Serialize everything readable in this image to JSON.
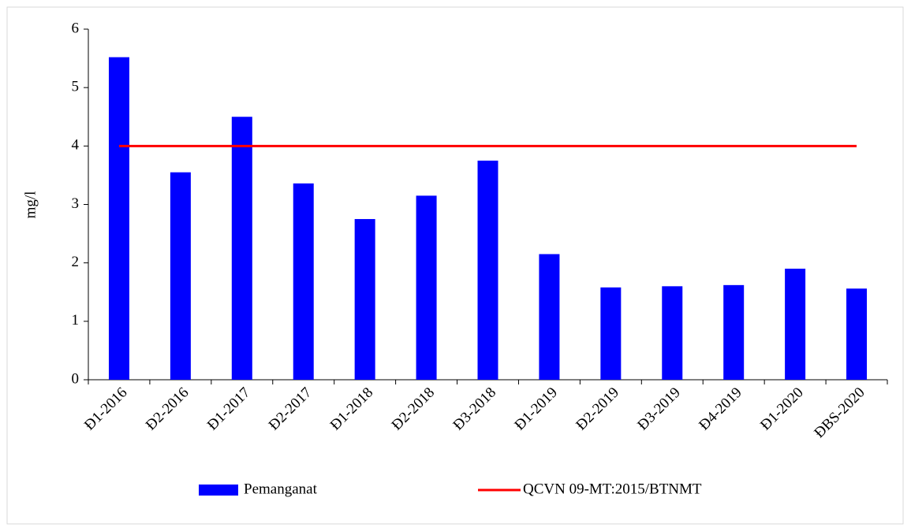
{
  "chart_data": {
    "type": "bar",
    "ylabel": "mg/l",
    "categories": [
      "Đ1-2016",
      "Đ2-2016",
      "Đ1-2017",
      "Đ2-2017",
      "Đ1-2018",
      "Đ2-2018",
      "Đ3-2018",
      "Đ1-2019",
      "Đ2-2019",
      "Đ3-2019",
      "Đ4-2019",
      "Đ1-2020",
      "ĐBS-2020"
    ],
    "series": [
      {
        "name": "Pemanganat",
        "type": "bar",
        "color": "#0000ff",
        "values": [
          5.52,
          3.55,
          4.5,
          3.36,
          2.75,
          3.15,
          3.75,
          2.15,
          1.58,
          1.6,
          1.62,
          1.9,
          1.56
        ]
      },
      {
        "name": "QCVN 09-MT:2015/BTNMT",
        "type": "line",
        "color": "#ff0000",
        "values": [
          4,
          4,
          4,
          4,
          4,
          4,
          4,
          4,
          4,
          4,
          4,
          4,
          4
        ]
      }
    ],
    "ylim": [
      0,
      6
    ],
    "yticks": [
      0,
      1,
      2,
      3,
      4,
      5,
      6
    ],
    "legend": "bottom"
  }
}
